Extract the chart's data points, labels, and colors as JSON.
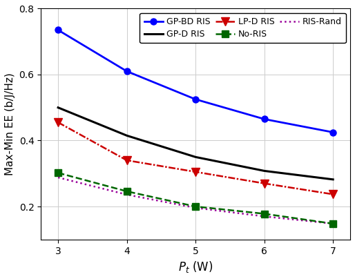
{
  "x": [
    3,
    4,
    5,
    6,
    7
  ],
  "gp_bd_ris": [
    0.735,
    0.61,
    0.525,
    0.465,
    0.425
  ],
  "gp_d_ris": [
    0.5,
    0.415,
    0.35,
    0.308,
    0.282
  ],
  "lp_d_ris": [
    0.455,
    0.34,
    0.305,
    0.27,
    0.237
  ],
  "no_ris": [
    0.302,
    0.246,
    0.2,
    0.178,
    0.148
  ],
  "ris_rand": [
    0.288,
    0.236,
    0.196,
    0.17,
    0.148
  ],
  "colors": {
    "gp_bd_ris": "#0000ff",
    "gp_d_ris": "#000000",
    "lp_d_ris": "#cc0000",
    "no_ris": "#006600",
    "ris_rand": "#990099"
  },
  "xlabel": "$P_t$ (W)",
  "ylabel": "Max-Min EE (b/J/Hz)",
  "xlim": [
    2.75,
    7.25
  ],
  "ylim": [
    0.1,
    0.8
  ],
  "yticks": [
    0.2,
    0.4,
    0.6,
    0.8
  ],
  "xticks": [
    3,
    4,
    5,
    6,
    7
  ]
}
